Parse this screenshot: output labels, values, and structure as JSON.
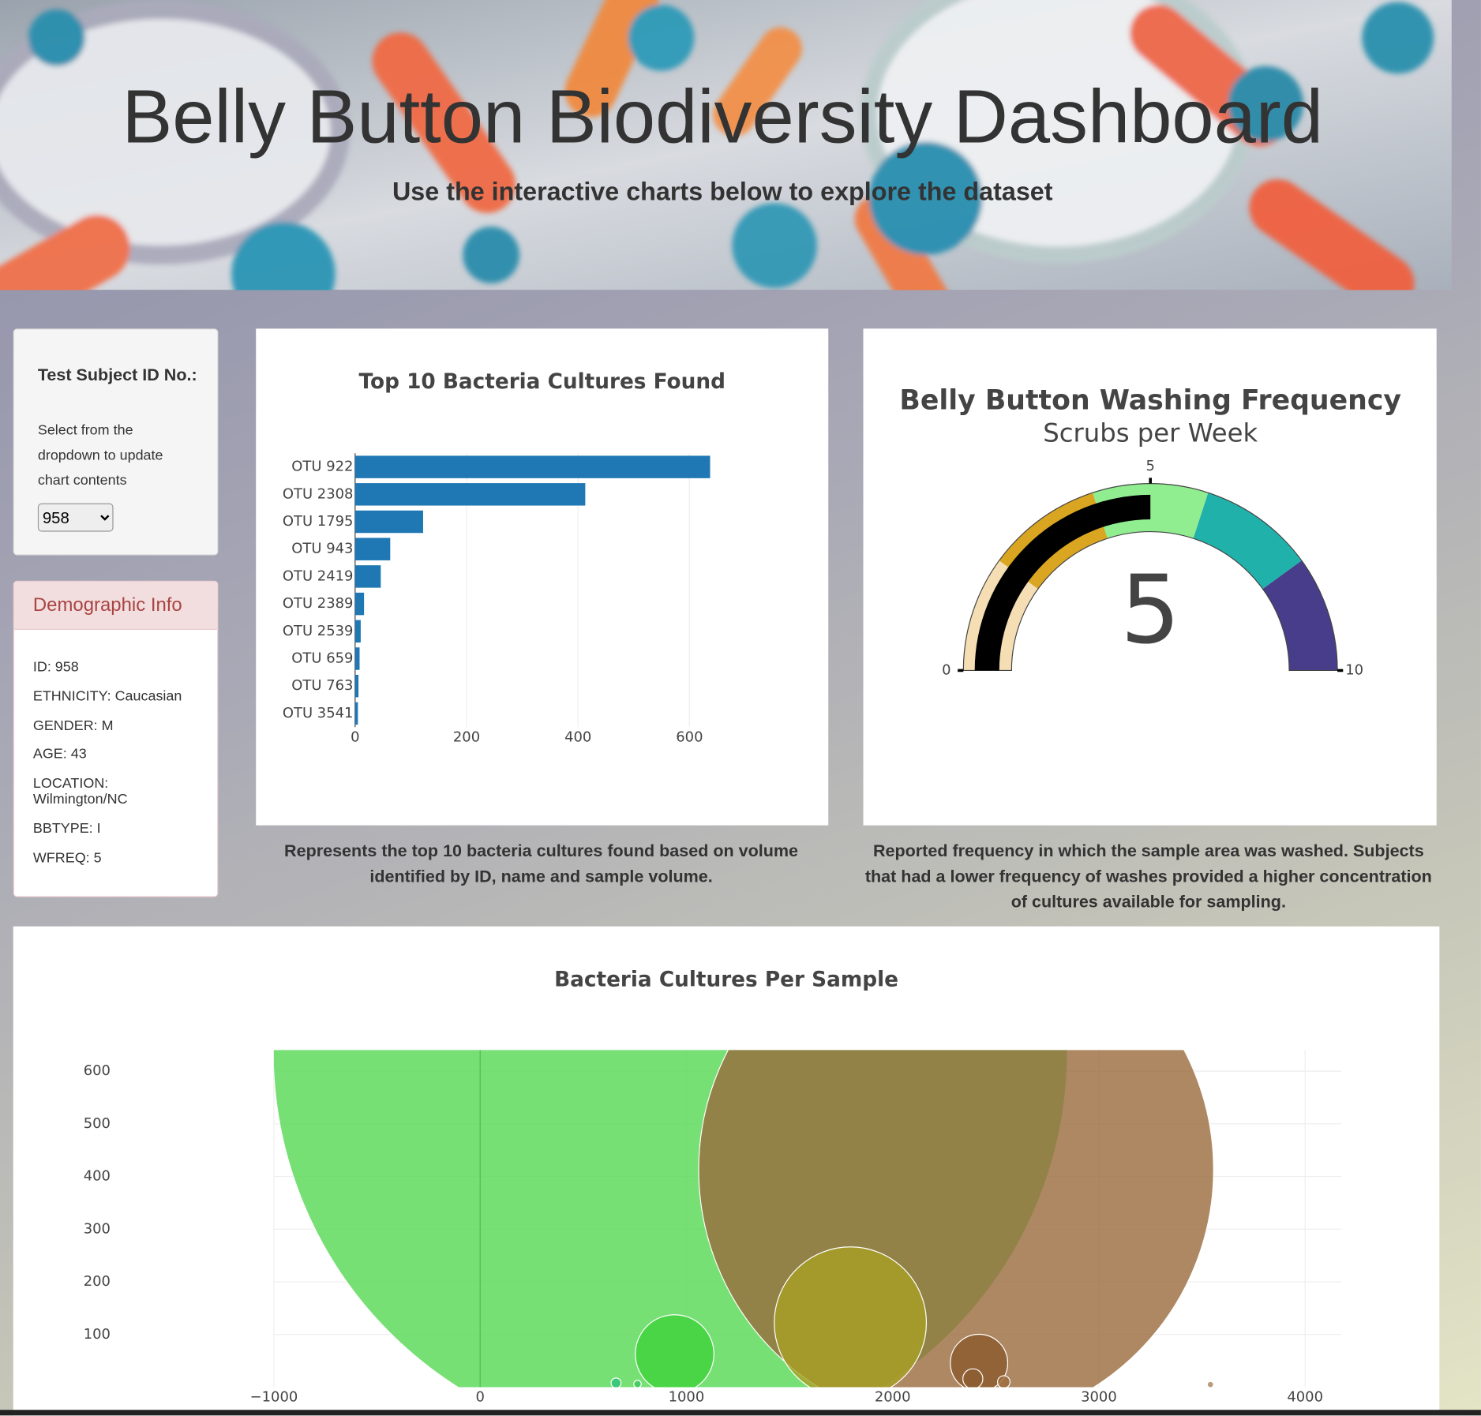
{
  "header": {
    "title": "Belly Button Biodiversity Dashboard",
    "subtitle": "Use the interactive charts below to explore the dataset"
  },
  "selector": {
    "label": "Test Subject ID No.:",
    "help": "Select from the dropdown to update chart contents",
    "value": "958"
  },
  "demographics": {
    "heading": "Demographic Info",
    "items": [
      "ID: 958",
      "ETHNICITY: Caucasian",
      "GENDER: M",
      "AGE: 43",
      "LOCATION: Wilmington/NC",
      "BBTYPE: I",
      "WFREQ: 5"
    ]
  },
  "captions": {
    "bar": "Represents the top 10 bacteria cultures found based on volume identified by ID, name and sample volume.",
    "gauge": "Reported frequency in which the sample area was washed. Subjects that had a lower frequency of washes provided a higher concentration of cultures available for sampling."
  },
  "chart_data": [
    {
      "type": "bar",
      "orientation": "horizontal",
      "title": "Top 10 Bacteria Cultures Found",
      "categories": [
        "OTU 922",
        "OTU 2308",
        "OTU 1795",
        "OTU 943",
        "OTU 2419",
        "OTU 2389",
        "OTU 2539",
        "OTU 659",
        "OTU 763",
        "OTU 3541"
      ],
      "values": [
        637,
        413,
        122,
        63,
        46,
        16,
        10,
        8,
        6,
        5
      ],
      "color": "#1f77b4",
      "xlim": [
        0,
        700
      ],
      "xticks": [
        0,
        200,
        400,
        600
      ],
      "grid": true
    },
    {
      "type": "gauge",
      "title": "Belly Button Washing Frequency",
      "subtitle": "Scrubs per Week",
      "value": 5,
      "range": [
        0,
        10
      ],
      "ticks": [
        0,
        5,
        10
      ],
      "bar_color": "#000000",
      "steps": [
        {
          "range": [
            0,
            2
          ],
          "color": "#f5deb3"
        },
        {
          "range": [
            2,
            4
          ],
          "color": "#daa520"
        },
        {
          "range": [
            4,
            6
          ],
          "color": "#90ee90"
        },
        {
          "range": [
            6,
            8
          ],
          "color": "#20b2aa"
        },
        {
          "range": [
            8,
            10
          ],
          "color": "#483d8b"
        }
      ]
    },
    {
      "type": "bubble",
      "title": "Bacteria Cultures Per Sample",
      "x": [
        922,
        2308,
        1795,
        943,
        2419,
        2389,
        2539,
        659,
        763,
        3541
      ],
      "y": [
        637,
        413,
        122,
        63,
        46,
        16,
        10,
        8,
        6,
        5
      ],
      "sizes": [
        637,
        413,
        122,
        63,
        46,
        16,
        10,
        8,
        6,
        5
      ],
      "colors": [
        "#55d852",
        "#996a3c",
        "#a7a024",
        "#3fd23c",
        "#8a5a2c",
        "#8c5c30",
        "#9b6b3d",
        "#2ec27a",
        "#3ac860",
        "#a9835b"
      ],
      "xlim": [
        -1000,
        4175
      ],
      "ylim": [
        0,
        640
      ],
      "xticks": [
        {
          "value": -1000,
          "label": "−1000"
        },
        0,
        1000,
        2000,
        3000,
        4000
      ],
      "yticks": [
        100,
        200,
        300,
        400,
        500,
        600
      ],
      "grid": true
    }
  ]
}
